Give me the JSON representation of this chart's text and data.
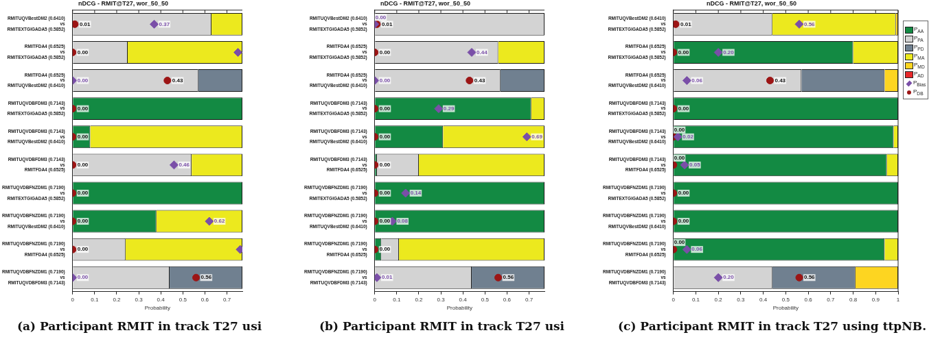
{
  "chart_data": [
    {
      "type": "bar",
      "orientation": "horizontal",
      "stacked": true,
      "title": "nDCG - RMIT@T27, wor_50_50",
      "xlabel": "Probability",
      "categories": [
        "RMITUQVBestDM2 (0.6410)\nvs\nRMITEXTGIGADA5 (0.5852)",
        "RMITFDA4 (0.6525)\nvs\nRMITEXTGIGADA5 (0.5852)",
        "RMITFDA4 (0.6525)\nvs\nRMITUQVBestDM2 (0.6410)",
        "RMITUQVDBFDM3 (0.7143)\nvs\nRMITEXTGIGADA5 (0.5852)",
        "RMITUQVDBFDM3 (0.7143)\nvs\nRMITUQVBestDM2 (0.6410)",
        "RMITUQVDBFDM3 (0.7143)\nvs\nRMITFDA4 (0.6525)",
        "RMITUQVDBFNZDM1 (0.7190)\nvs\nRMITEXTGIGADA5 (0.5852)",
        "RMITUQVDBFNZDM1 (0.7190)\nvs\nRMITUQVBestDM2 (0.6410)",
        "RMITUQVDBFNZDM1 (0.7190)\nvs\nRMITFDA4 (0.6525)",
        "RMITUQVDBFNZDM1 (0.7190)\nvs\nRMITUQVDBFDM3 (0.7143)"
      ],
      "series": [
        {
          "color": "#138a43",
          "values": [
            0,
            0,
            0,
            0.77,
            0.08,
            0,
            0.77,
            0.38,
            0,
            0
          ]
        },
        {
          "color": "#d3d3d3",
          "values": [
            0.63,
            0.25,
            0.57,
            0,
            0,
            0.54,
            0,
            0,
            0.24,
            0.44
          ]
        },
        {
          "color": "#708090",
          "values": [
            0,
            0,
            0.2,
            0,
            0,
            0,
            0,
            0,
            0,
            0.33
          ]
        },
        {
          "color": "#ece91e",
          "values": [
            0.14,
            0.52,
            0,
            0,
            0.69,
            0.23,
            0,
            0.39,
            0.53,
            0
          ]
        },
        {
          "type": "scatter",
          "marker": "diamond",
          "color": "#7a4fa8",
          "values": [
            0.37,
            0.75,
            0,
            null,
            null,
            0.46,
            null,
            0.62,
            0.76,
            0
          ],
          "value_labels": [
            "0.37",
            null,
            "0.00",
            null,
            null,
            "0.46",
            null,
            "0.62",
            null,
            "0.00"
          ]
        },
        {
          "type": "scatter",
          "marker": "circle",
          "color": "#9c1515",
          "values": [
            0.01,
            0,
            0.43,
            0,
            0,
            0,
            0,
            0,
            0,
            0.56
          ],
          "value_labels": [
            "0.01",
            "0.00",
            "0.43",
            "0.00",
            "0.00",
            "0.00",
            "0.00",
            "0.00",
            "0.00",
            "0.56"
          ]
        }
      ],
      "xlim": [
        0,
        0.77
      ],
      "xticks": [
        0,
        0.1,
        0.2,
        0.3,
        0.4,
        0.5,
        0.6,
        0.7
      ],
      "legend": false,
      "annotations": [
        "(a) Participant RMIT in track T27 usi"
      ]
    },
    {
      "type": "bar",
      "orientation": "horizontal",
      "stacked": true,
      "title": "nDCG - RMIT@T27, wor_50_50",
      "xlabel": "Probability",
      "categories": [
        "RMITUQVBestDM2 (0.6410)\nvs\nRMITEXTGIGADA5 (0.5852)",
        "RMITFDA4 (0.6525)\nvs\nRMITEXTGIGADA5 (0.5852)",
        "RMITFDA4 (0.6525)\nvs\nRMITUQVBestDM2 (0.6410)",
        "RMITUQVDBFDM3 (0.7143)\nvs\nRMITEXTGIGADA5 (0.5852)",
        "RMITUQVDBFDM3 (0.7143)\nvs\nRMITUQVBestDM2 (0.6410)",
        "RMITUQVDBFDM3 (0.7143)\nvs\nRMITFDA4 (0.6525)",
        "RMITUQVDBFNZDM1 (0.7190)\nvs\nRMITEXTGIGADA5 (0.5852)",
        "RMITUQVDBFNZDM1 (0.7190)\nvs\nRMITUQVBestDM2 (0.6410)",
        "RMITUQVDBFNZDM1 (0.7190)\nvs\nRMITFDA4 (0.6525)",
        "RMITUQVDBFNZDM1 (0.7190)\nvs\nRMITUQVDBFDM3 (0.7143)"
      ],
      "series": [
        {
          "color": "#138a43",
          "values": [
            0,
            0,
            0,
            0.71,
            0.31,
            0.01,
            0.77,
            0.77,
            0.03,
            0
          ]
        },
        {
          "color": "#d3d3d3",
          "values": [
            0.77,
            0.56,
            0.57,
            0,
            0,
            0.19,
            0,
            0,
            0.08,
            0.44
          ]
        },
        {
          "color": "#708090",
          "values": [
            0,
            0,
            0.2,
            0,
            0,
            0,
            0,
            0,
            0,
            0.33
          ]
        },
        {
          "color": "#ece91e",
          "values": [
            0,
            0.21,
            0,
            0.06,
            0.46,
            0.57,
            0,
            0,
            0.66,
            0
          ]
        },
        {
          "type": "scatter",
          "marker": "diamond",
          "color": "#7a4fa8",
          "values": [
            0,
            0.44,
            0,
            0.29,
            0.69,
            null,
            0.14,
            0.08,
            null,
            0.01
          ],
          "value_labels": [
            "0.00",
            "0.44",
            "0.00",
            "0.29",
            "0.69",
            null,
            "0.14",
            "0.08",
            null,
            "0.01"
          ]
        },
        {
          "type": "scatter",
          "marker": "circle",
          "color": "#9c1515",
          "values": [
            0.01,
            0,
            0.43,
            0,
            0,
            0,
            0,
            0,
            0,
            0.56
          ],
          "value_labels": [
            "0.01",
            "0.00",
            "0.43",
            "0.00",
            "0.00",
            "0.00",
            "0.00",
            "0.00",
            "0.00",
            "0.56"
          ]
        }
      ],
      "xlim": [
        0,
        0.77
      ],
      "xticks": [
        0,
        0.1,
        0.2,
        0.3,
        0.4,
        0.5,
        0.6,
        0.7
      ],
      "legend": false,
      "annotations": [
        "(b) Participant RMIT in track T27 usi"
      ]
    },
    {
      "type": "bar",
      "orientation": "horizontal",
      "stacked": true,
      "title": "nDCG - RMIT@T27, wor_50_50",
      "xlabel": "Probability",
      "categories": [
        "RMITUQVBestDM2 (0.6410)\nvs\nRMITEXTGIGADA5 (0.5852)",
        "RMITFDA4 (0.6525)\nvs\nRMITEXTGIGADA5 (0.5852)",
        "RMITFDA4 (0.6525)\nvs\nRMITUQVBestDM2 (0.6410)",
        "RMITUQVDBFDM3 (0.7143)\nvs\nRMITEXTGIGADA5 (0.5852)",
        "RMITUQVDBFDM3 (0.7143)\nvs\nRMITUQVBestDM2 (0.6410)",
        "RMITUQVDBFDM3 (0.7143)\nvs\nRMITFDA4 (0.6525)",
        "RMITUQVDBFNZDM1 (0.7190)\nvs\nRMITEXTGIGADA5 (0.5852)",
        "RMITUQVDBFNZDM1 (0.7190)\nvs\nRMITUQVBestDM2 (0.6410)",
        "RMITUQVDBFNZDM1 (0.7190)\nvs\nRMITFDA4 (0.6525)",
        "RMITUQVDBFNZDM1 (0.7190)\nvs\nRMITUQVDBFDM3 (0.7143)"
      ],
      "series": [
        {
          "name": "P$_{AA}$",
          "color": "#138a43",
          "values": [
            0,
            0.8,
            0,
            1,
            0.98,
            0.95,
            1,
            1,
            0.94,
            0
          ]
        },
        {
          "name": "P$_{PA}$",
          "color": "#d3d3d3",
          "values": [
            0.44,
            0,
            0.57,
            0,
            0,
            0,
            0,
            0,
            0,
            0.44
          ]
        },
        {
          "name": "P$_{PD}$",
          "color": "#708090",
          "values": [
            0,
            0,
            0.37,
            0,
            0,
            0,
            0,
            0,
            0,
            0.37
          ]
        },
        {
          "name": "P$_{MA}$",
          "color": "#ece91e",
          "values": [
            0.55,
            0.2,
            0,
            0,
            0.02,
            0.05,
            0,
            0,
            0.06,
            0
          ]
        },
        {
          "name": "P$_{MD}$",
          "color": "#fdd521",
          "values": [
            0.01,
            0,
            0.06,
            0,
            0,
            0,
            0,
            0,
            0,
            0.19
          ]
        },
        {
          "name": "P$_{AD}$",
          "color": "#e8282a",
          "values": [
            0,
            0,
            0,
            0,
            0,
            0,
            0,
            0,
            0,
            0
          ]
        },
        {
          "name": "P$_{Bias}$",
          "type": "scatter",
          "marker": "diamond",
          "color": "#7a4fa8",
          "values": [
            0.56,
            0.2,
            0.06,
            null,
            0.02,
            0.05,
            null,
            null,
            0.06,
            0.2
          ],
          "value_labels": [
            "0.56",
            "0.20",
            "0.06",
            null,
            "0.02",
            "0.05",
            null,
            null,
            "0.06",
            "0.20"
          ]
        },
        {
          "name": "P$_{DB}$",
          "type": "scatter",
          "marker": "circle",
          "color": "#9c1515",
          "values": [
            0.01,
            0,
            0.43,
            0,
            0,
            0,
            0,
            0,
            0,
            0.56
          ],
          "value_labels": [
            "0.01",
            "0.00",
            "0.43",
            "0.00",
            "0.00",
            "0.00",
            "0.00",
            "0.00",
            "0.00",
            "0.56"
          ]
        }
      ],
      "xlim": [
        0,
        1
      ],
      "xticks": [
        0,
        0.1,
        0.2,
        0.3,
        0.4,
        0.5,
        0.6,
        0.7,
        0.8,
        0.9,
        1
      ],
      "legend": "right",
      "annotations": [
        "(c) Participant RMIT in track T27 using ttpNB."
      ]
    }
  ]
}
